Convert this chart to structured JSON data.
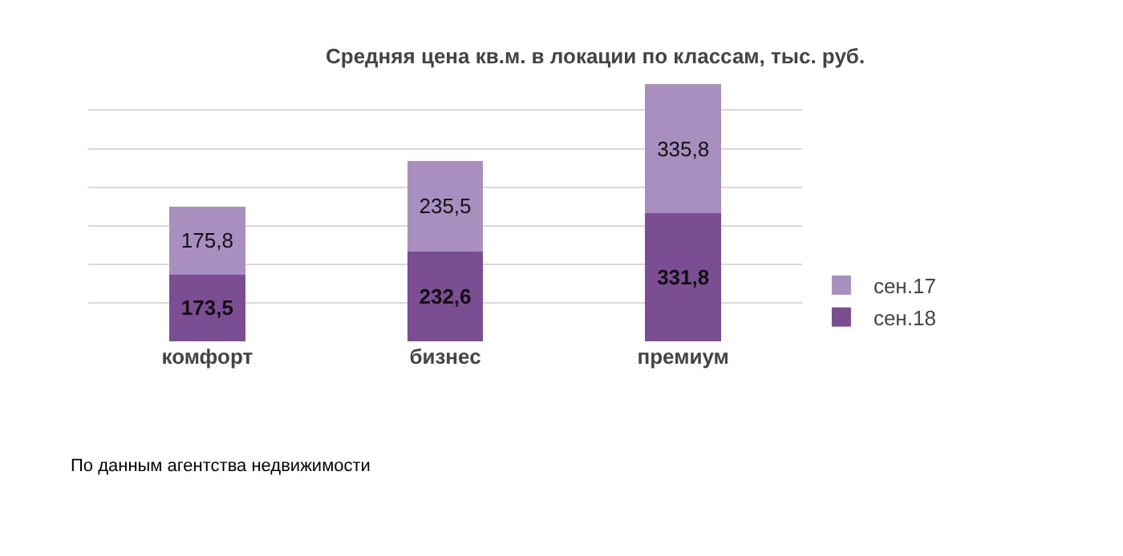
{
  "chart_data": {
    "type": "bar",
    "stacked": true,
    "title": "Средняя цена кв.м. в локации по классам, тыс. руб.",
    "categories": [
      "комфорт",
      "бизнес",
      "премиум"
    ],
    "series": [
      {
        "name": "сен.18",
        "color": "#7b4d92",
        "values": [
          173.5,
          232.6,
          331.8
        ],
        "value_labels": [
          "173,5",
          "232,6",
          "331,8"
        ]
      },
      {
        "name": "сен.17",
        "color": "#a98fbf",
        "values": [
          175.8,
          235.5,
          335.8
        ],
        "value_labels": [
          "175,8",
          "235,5",
          "335,8"
        ]
      }
    ],
    "tick_labels": "x",
    "grid": "y",
    "legend": "bottom right",
    "annotations": [
      "По данным агентства недвижимости"
    ]
  }
}
